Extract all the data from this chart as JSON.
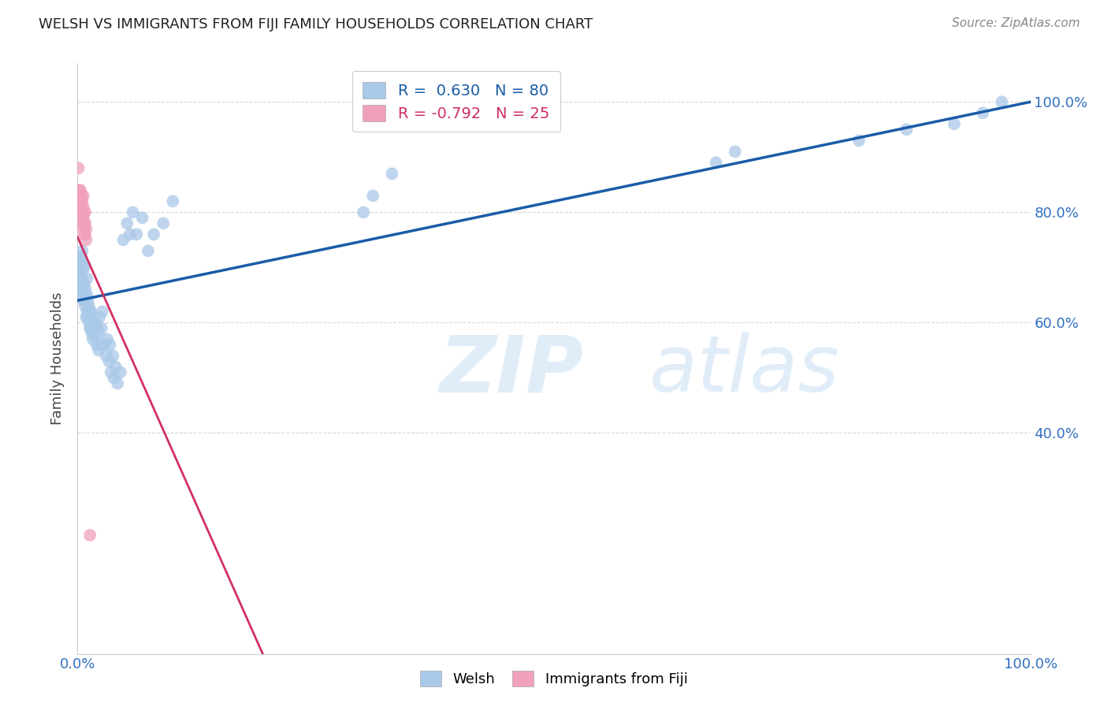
{
  "title": "WELSH VS IMMIGRANTS FROM FIJI FAMILY HOUSEHOLDS CORRELATION CHART",
  "source": "Source: ZipAtlas.com",
  "ylabel": "Family Households",
  "watermark": "ZIPatlas",
  "legend_welsh_label": "Welsh",
  "legend_fiji_label": "Immigrants from Fiji",
  "welsh_R": "0.630",
  "welsh_N": "80",
  "fiji_R": "-0.792",
  "fiji_N": "25",
  "welsh_color": "#aac8e8",
  "welsh_line_color": "#1a5ca8",
  "fiji_color": "#f0a0b8",
  "fiji_line_color": "#d03060",
  "background_color": "#ffffff",
  "grid_color": "#cccccc",
  "welsh_x": [
    0.001,
    0.002,
    0.002,
    0.003,
    0.003,
    0.003,
    0.004,
    0.004,
    0.004,
    0.005,
    0.005,
    0.005,
    0.005,
    0.006,
    0.006,
    0.006,
    0.007,
    0.007,
    0.007,
    0.008,
    0.008,
    0.009,
    0.009,
    0.01,
    0.01,
    0.01,
    0.011,
    0.011,
    0.012,
    0.012,
    0.013,
    0.013,
    0.014,
    0.014,
    0.015,
    0.015,
    0.016,
    0.016,
    0.017,
    0.018,
    0.019,
    0.02,
    0.021,
    0.022,
    0.022,
    0.023,
    0.024,
    0.025,
    0.026,
    0.028,
    0.03,
    0.031,
    0.033,
    0.034,
    0.035,
    0.037,
    0.038,
    0.04,
    0.042,
    0.045,
    0.048,
    0.052,
    0.055,
    0.058,
    0.062,
    0.068,
    0.074,
    0.08,
    0.09,
    0.1,
    0.3,
    0.31,
    0.33,
    0.67,
    0.69,
    0.82,
    0.87,
    0.92,
    0.95,
    0.97
  ],
  "welsh_y": [
    0.66,
    0.7,
    0.72,
    0.67,
    0.69,
    0.72,
    0.65,
    0.68,
    0.71,
    0.66,
    0.68,
    0.71,
    0.73,
    0.64,
    0.67,
    0.7,
    0.64,
    0.67,
    0.7,
    0.63,
    0.66,
    0.61,
    0.64,
    0.62,
    0.65,
    0.68,
    0.61,
    0.64,
    0.6,
    0.63,
    0.59,
    0.62,
    0.59,
    0.62,
    0.58,
    0.61,
    0.57,
    0.6,
    0.59,
    0.58,
    0.6,
    0.56,
    0.59,
    0.55,
    0.58,
    0.61,
    0.56,
    0.59,
    0.62,
    0.56,
    0.54,
    0.57,
    0.53,
    0.56,
    0.51,
    0.54,
    0.5,
    0.52,
    0.49,
    0.51,
    0.75,
    0.78,
    0.76,
    0.8,
    0.76,
    0.79,
    0.73,
    0.76,
    0.78,
    0.82,
    0.8,
    0.83,
    0.87,
    0.89,
    0.91,
    0.93,
    0.95,
    0.96,
    0.98,
    1.0
  ],
  "fiji_x": [
    0.001,
    0.002,
    0.002,
    0.003,
    0.003,
    0.003,
    0.004,
    0.004,
    0.004,
    0.005,
    0.005,
    0.005,
    0.006,
    0.006,
    0.006,
    0.006,
    0.007,
    0.007,
    0.007,
    0.008,
    0.008,
    0.008,
    0.009,
    0.009,
    0.013
  ],
  "fiji_y": [
    0.88,
    0.82,
    0.84,
    0.8,
    0.82,
    0.84,
    0.79,
    0.81,
    0.83,
    0.78,
    0.8,
    0.82,
    0.77,
    0.79,
    0.81,
    0.83,
    0.76,
    0.78,
    0.8,
    0.76,
    0.78,
    0.8,
    0.75,
    0.77,
    0.215
  ],
  "xlim": [
    0.0,
    1.0
  ],
  "ylim": [
    0.0,
    1.07
  ],
  "ytick_positions": [
    0.4,
    0.6,
    0.8,
    1.0
  ],
  "ytick_labels": [
    "40.0%",
    "60.0%",
    "80.0%",
    "100.0%"
  ],
  "xtick_positions": [
    0.0,
    1.0
  ],
  "xtick_labels": [
    "0.0%",
    "100.0%"
  ],
  "right_ytick_color": "#3070c0",
  "title_fontsize": 13,
  "source_fontsize": 11,
  "tick_fontsize": 13,
  "ylabel_fontsize": 13
}
